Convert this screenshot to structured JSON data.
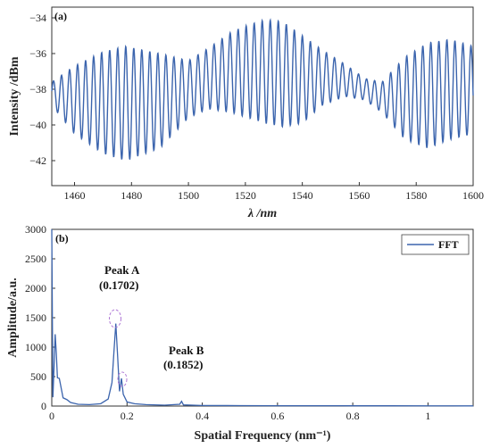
{
  "chart_data": [
    {
      "type": "line",
      "panel_label": "(a)",
      "xlabel": "λ /nm",
      "ylabel": "Intensity /dBm",
      "xlim": [
        1452,
        1600
      ],
      "ylim": [
        -43.4,
        -33.4
      ],
      "xticks": [
        1460,
        1480,
        1500,
        1520,
        1540,
        1560,
        1580,
        1600
      ],
      "yticks": [
        -42,
        -40,
        -38,
        -36,
        -34
      ],
      "grid": false,
      "color": "#3b64ad",
      "fringe_period_nm": 2.82,
      "series": [
        {
          "x": [
            1452,
            1460,
            1470,
            1478,
            1490,
            1500,
            1507,
            1515,
            1521,
            1527,
            1533,
            1540,
            1547,
            1555,
            1562,
            1568,
            1576,
            1584,
            1592,
            1600
          ],
          "upper": [
            -37.6,
            -36.7,
            -35.9,
            -35.6,
            -36.0,
            -36.4,
            -35.7,
            -34.8,
            -34.4,
            -34.1,
            -34.2,
            -35.0,
            -35.8,
            -36.6,
            -37.4,
            -37.6,
            -36.2,
            -35.4,
            -35.2,
            -35.6
          ],
          "lower": [
            -38.9,
            -40.5,
            -41.6,
            -42.0,
            -41.3,
            -39.6,
            -39.1,
            -39.3,
            -39.6,
            -39.9,
            -40.1,
            -39.9,
            -38.9,
            -38.4,
            -38.6,
            -39.3,
            -40.8,
            -41.3,
            -40.8,
            -40.5
          ]
        }
      ]
    },
    {
      "type": "line",
      "panel_label": "(b)",
      "xlabel": "Spatial Frequency (nm⁻¹)",
      "ylabel": "Amplitude/a.u.",
      "xlim": [
        0,
        1.12
      ],
      "ylim": [
        0,
        3000
      ],
      "xticks": [
        "0",
        "0.2",
        "0.4",
        "0.6",
        "0.8",
        "1"
      ],
      "yticks": [
        "0",
        "500",
        "1000",
        "1500",
        "2000",
        "2500",
        "3000"
      ],
      "grid": false,
      "legend": "top-right",
      "color": "#3b64ad",
      "series": [
        {
          "name": "FFT",
          "x": [
            0,
            0.003,
            0.006,
            0.009,
            0.012,
            0.015,
            0.02,
            0.03,
            0.04,
            0.05,
            0.07,
            0.1,
            0.13,
            0.15,
            0.16,
            0.165,
            0.1702,
            0.175,
            0.18,
            0.1852,
            0.19,
            0.2,
            0.22,
            0.25,
            0.3,
            0.34,
            0.345,
            0.35,
            0.4,
            0.5,
            0.6,
            0.7,
            0.8,
            0.9,
            1.0,
            1.1,
            1.12
          ],
          "y": [
            3000,
            150,
            650,
            1220,
            900,
            480,
            470,
            140,
            110,
            60,
            30,
            25,
            40,
            120,
            400,
            900,
            1400,
            850,
            250,
            470,
            200,
            70,
            40,
            25,
            15,
            30,
            80,
            20,
            10,
            8,
            6,
            6,
            5,
            5,
            4,
            3,
            3
          ]
        }
      ],
      "annotations": [
        {
          "label": "Peak A",
          "value": "(0.1702)"
        },
        {
          "label": "Peak B",
          "value": "(0.1852)"
        }
      ]
    }
  ]
}
